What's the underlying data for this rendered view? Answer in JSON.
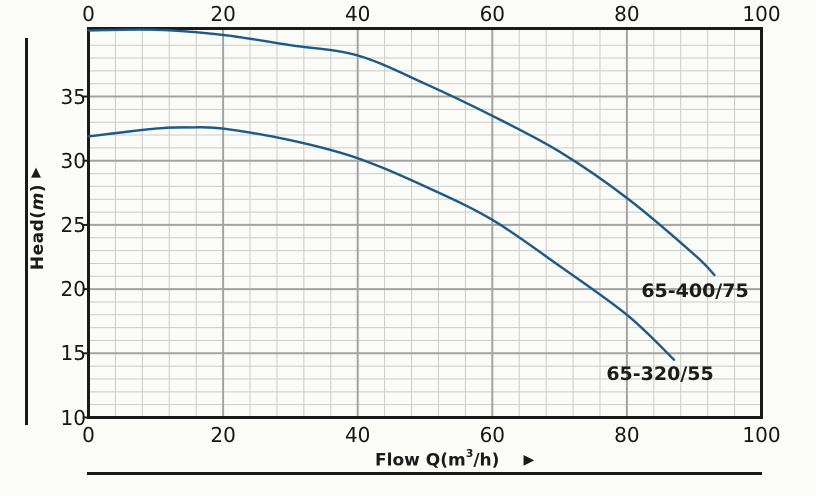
{
  "chart_data": {
    "type": "line",
    "title": "",
    "xlabel": "Flow Q(m³/h)",
    "xlabel_parts": {
      "prefix": "Flow Q(m",
      "sup": "3",
      "suffix": "/h)",
      "arrow": "▶"
    },
    "ylabel": "Head(m)",
    "ylabel_parts": {
      "prefix": "Head(",
      "italic": "m",
      "suffix": ")",
      "arrow": "▲"
    },
    "xlim": [
      0,
      100
    ],
    "ylim": [
      10,
      40.3
    ],
    "x_ticks": [
      0,
      20,
      40,
      60,
      80,
      100
    ],
    "y_ticks": [
      10,
      15,
      20,
      25,
      30,
      35
    ],
    "x_minor_step": 4,
    "y_minor_step": 1,
    "x_major_step": 20,
    "y_major_step": 5,
    "grid": true,
    "tick_labels_top_and_bottom": true,
    "colors": {
      "curve": "#1e5a87",
      "grid_minor": "#cbcbcb",
      "grid_major": "#a3a3a3",
      "axis": "#1a1a1a",
      "background": "#fbfbf7",
      "text": "#1a1a1a"
    },
    "series": [
      {
        "name": "65-400/75",
        "x": [
          0,
          10,
          20,
          30,
          40,
          50,
          60,
          70,
          80,
          90,
          93
        ],
        "y": [
          40.15,
          40.2,
          39.8,
          39.0,
          38.2,
          36.0,
          33.5,
          30.7,
          27.1,
          22.7,
          21.1
        ]
      },
      {
        "name": "65-320/55",
        "x": [
          0,
          10,
          15,
          20,
          30,
          40,
          50,
          60,
          70,
          80,
          87
        ],
        "y": [
          31.9,
          32.5,
          32.6,
          32.5,
          31.6,
          30.2,
          28.0,
          25.4,
          21.8,
          18.0,
          14.5
        ]
      }
    ]
  }
}
